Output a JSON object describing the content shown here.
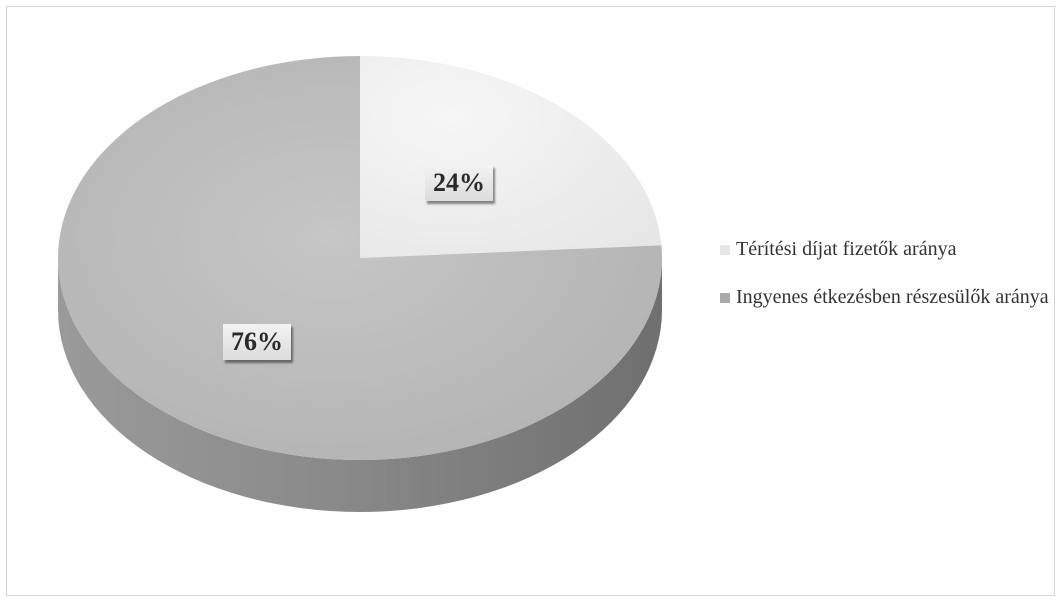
{
  "chart_data": {
    "type": "pie",
    "title": "",
    "series": [
      {
        "values": [
          24,
          76
        ]
      }
    ],
    "categories": [
      "Térítési díjat fizetők aránya",
      "Ingyenes étkezésben részesülők aránya"
    ],
    "slices": [
      {
        "label": "Térítési díjat fizetők aránya",
        "value": 24,
        "display": "24%",
        "color": "#eeeeee"
      },
      {
        "label": "Ingyenes étkezésben részesülők aránya",
        "value": 76,
        "display": "76%",
        "color": "#b9b9b9"
      }
    ],
    "style": "3d",
    "legend_position": "right"
  }
}
